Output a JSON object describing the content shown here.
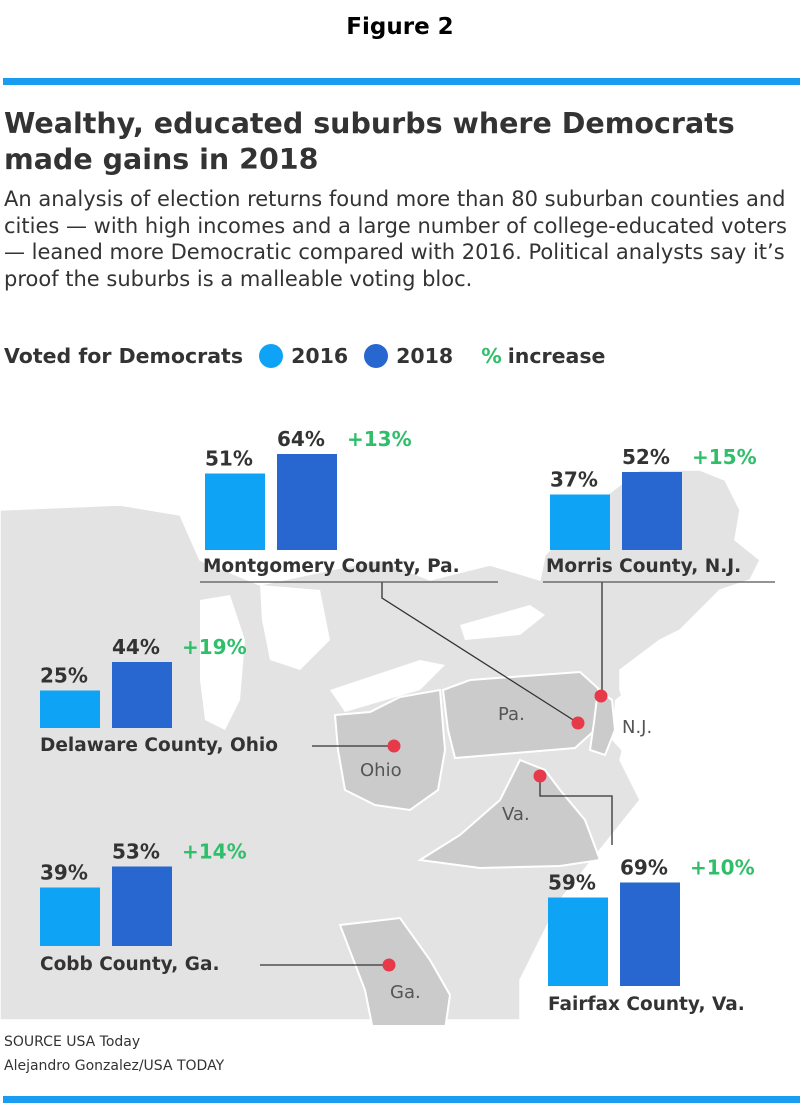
{
  "figure_label": "Figure 2",
  "colors": {
    "y2016": "#0fa3f5",
    "y2018": "#2767cf",
    "increase": "#2fbe6a",
    "rule": "#1a9cf0",
    "state_highlight": "#cbcbcb",
    "map_base": "#e3e3e3",
    "pin": "#e8394a"
  },
  "legend": {
    "lead": "Voted for Democrats",
    "y2016": "2016",
    "y2018": "2018",
    "pct_symbol": "%",
    "increase_label": "increase"
  },
  "map_labels": {
    "ohio": "Ohio",
    "pa": "Pa.",
    "nj": "N.J.",
    "va": "Va.",
    "ga": "Ga."
  },
  "source": "SOURCE USA Today",
  "credit": "Alejandro Gonzalez/USA TODAY",
  "chart_data": {
    "type": "bar",
    "title": "Wealthy, educated suburbs where Democrats made gains in 2018",
    "subtitle": "An analysis of election returns found more than 80 suburban counties and cities — with high incomes and a large number of college-educated voters — leaned more Democratic compared with 2016. Political analysts say it’s proof the suburbs is a malleable voting bloc.",
    "categories": [
      "Montgomery County, Pa.",
      "Morris County, N.J.",
      "Delaware County, Ohio",
      "Cobb County, Ga.",
      "Fairfax County, Va."
    ],
    "series": [
      {
        "name": "2016",
        "values": [
          51,
          37,
          25,
          39,
          59
        ]
      },
      {
        "name": "2018",
        "values": [
          64,
          52,
          44,
          53,
          69
        ]
      }
    ],
    "value_labels_2016": [
      "51%",
      "37%",
      "25%",
      "39%",
      "59%"
    ],
    "value_labels_2018": [
      "64%",
      "52%",
      "44%",
      "53%",
      "69%"
    ],
    "increase_labels": [
      "+13%",
      "+15%",
      "+19%",
      "+14%",
      "+10%"
    ],
    "unit": "%",
    "legend_position": "top-left"
  }
}
